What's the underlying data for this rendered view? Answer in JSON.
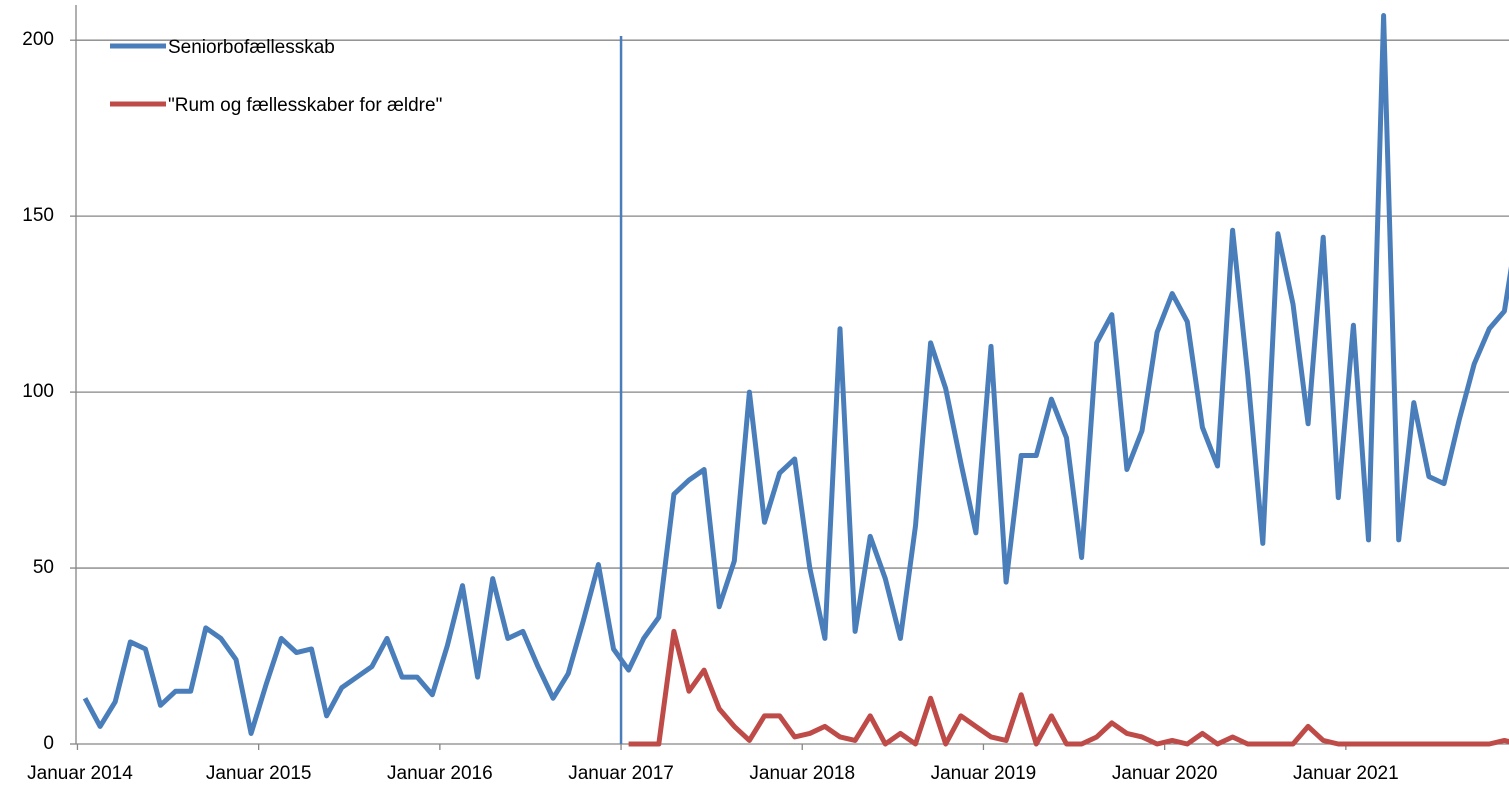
{
  "chart_data": {
    "type": "line",
    "categories": [
      "Januar 2014",
      null,
      null,
      null,
      null,
      null,
      null,
      null,
      null,
      null,
      null,
      null,
      "Januar 2015",
      null,
      null,
      null,
      null,
      null,
      null,
      null,
      null,
      null,
      null,
      null,
      "Januar 2016",
      null,
      null,
      null,
      null,
      null,
      null,
      null,
      null,
      null,
      null,
      null,
      "Januar 2017",
      null,
      null,
      null,
      null,
      null,
      null,
      null,
      null,
      null,
      null,
      null,
      "Januar 2018",
      null,
      null,
      null,
      null,
      null,
      null,
      null,
      null,
      null,
      null,
      null,
      "Januar 2019",
      null,
      null,
      null,
      null,
      null,
      null,
      null,
      null,
      null,
      null,
      null,
      "Januar 2020",
      null,
      null,
      null,
      null,
      null,
      null,
      null,
      null,
      null,
      null,
      null,
      "Januar 2021",
      null,
      null,
      null,
      null,
      null,
      null,
      null,
      null,
      null,
      null,
      null
    ],
    "series": [
      {
        "name": "Seniorbofællesskab",
        "color": "#4a7ebb",
        "values": [
          13,
          5,
          12,
          29,
          27,
          11,
          15,
          15,
          33,
          30,
          24,
          3,
          17,
          30,
          26,
          27,
          8,
          16,
          19,
          22,
          30,
          19,
          19,
          14,
          28,
          45,
          19,
          47,
          30,
          32,
          22,
          13,
          20,
          35,
          51,
          27,
          21,
          30,
          36,
          71,
          75,
          78,
          39,
          52,
          100,
          63,
          77,
          81,
          50,
          30,
          118,
          32,
          59,
          47,
          30,
          62,
          114,
          101,
          80,
          60,
          113,
          46,
          82,
          82,
          98,
          87,
          53,
          114,
          122,
          78,
          89,
          117,
          128,
          120,
          90,
          79,
          146,
          105,
          57,
          145,
          125,
          91,
          144,
          70,
          119,
          58,
          207,
          58,
          97,
          76,
          74,
          92,
          108,
          118,
          123,
          150
        ]
      },
      {
        "name": "\"Rum og fællesskaber for ældre\"",
        "color": "#be4b48",
        "values": [
          null,
          null,
          null,
          null,
          null,
          null,
          null,
          null,
          null,
          null,
          null,
          null,
          null,
          null,
          null,
          null,
          null,
          null,
          null,
          null,
          null,
          null,
          null,
          null,
          null,
          null,
          null,
          null,
          null,
          null,
          null,
          null,
          null,
          null,
          null,
          null,
          0,
          0,
          0,
          32,
          15,
          21,
          10,
          5,
          1,
          8,
          8,
          2,
          3,
          5,
          2,
          1,
          8,
          0,
          3,
          0,
          13,
          0,
          8,
          5,
          2,
          1,
          14,
          0,
          8,
          0,
          0,
          2,
          6,
          3,
          2,
          0,
          1,
          0,
          3,
          0,
          2,
          0,
          0,
          0,
          0,
          5,
          1,
          0,
          0,
          0,
          0,
          0,
          0,
          0,
          0,
          0,
          0,
          0,
          1,
          0
        ]
      }
    ],
    "ylim": [
      0,
      210
    ],
    "yticks": [
      0,
      50,
      100,
      150,
      200
    ],
    "grid": true,
    "legend": "top-left"
  }
}
